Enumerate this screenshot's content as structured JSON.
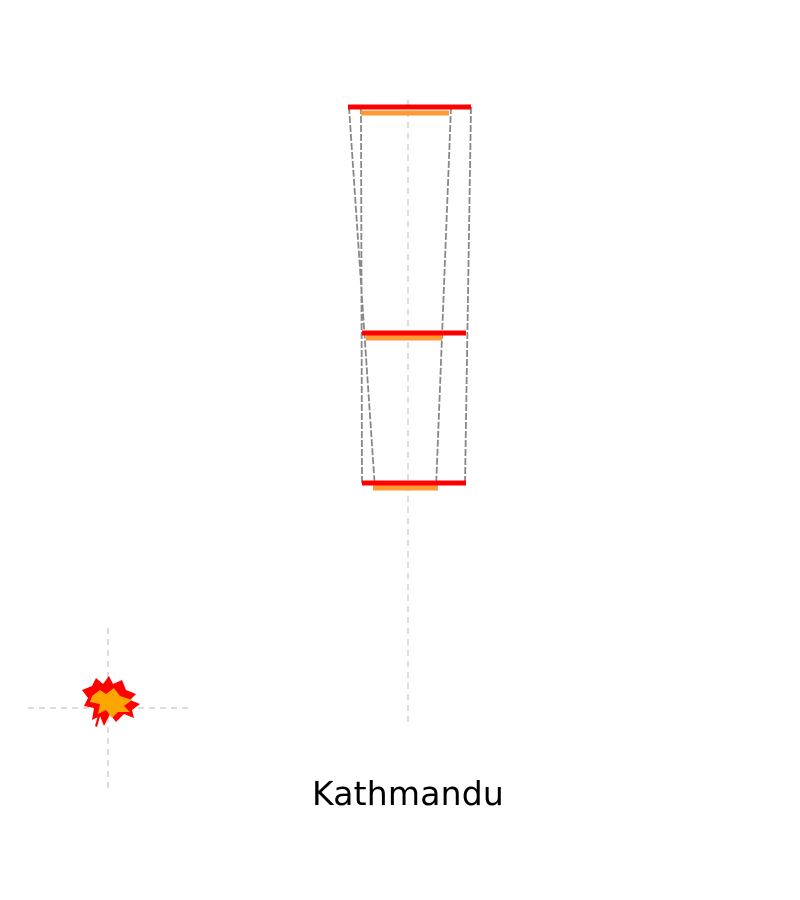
{
  "title": "Kathmandu",
  "colors": {
    "red": "#ff0000",
    "orange": "#ff9933",
    "gray": "#808080",
    "guide": "#cccccc",
    "text": "#000000"
  }
}
